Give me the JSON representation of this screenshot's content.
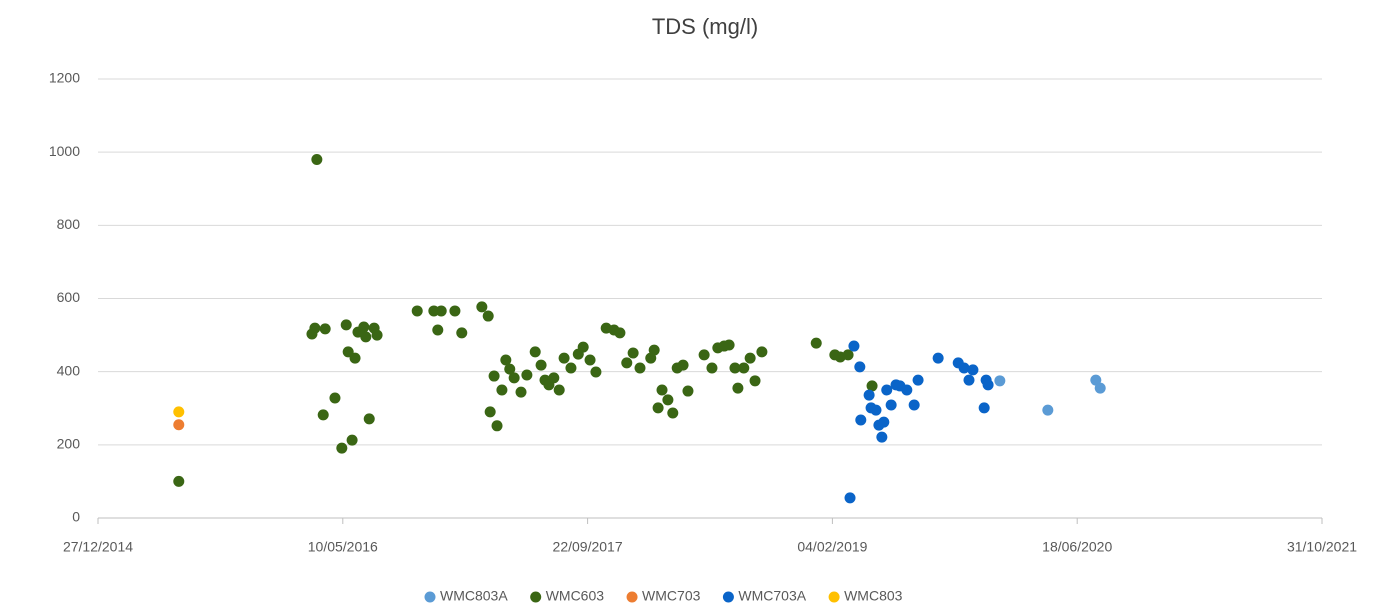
{
  "chart_data": {
    "type": "scatter",
    "title": "TDS (mg/l)",
    "xlim": [
      42000,
      44500
    ],
    "xticks": [
      {
        "value": 42000,
        "label": "27/12/2014"
      },
      {
        "value": 42500,
        "label": "10/05/2016"
      },
      {
        "value": 43000,
        "label": "22/09/2017"
      },
      {
        "value": 43500,
        "label": "04/02/2019"
      },
      {
        "value": 44000,
        "label": "18/06/2020"
      },
      {
        "value": 44500,
        "label": "31/10/2021"
      }
    ],
    "ylim": [
      0,
      1200
    ],
    "yticks": [
      0,
      200,
      400,
      600,
      800,
      1000,
      1200
    ],
    "grid": true,
    "legend": "bottom",
    "series": [
      {
        "name": "WMC803A",
        "color": "#5b9bd5",
        "x": [
          43842,
          43940,
          44038,
          44047
        ],
        "values": [
          375,
          295,
          377,
          355
        ]
      },
      {
        "name": "WMC603",
        "color": "#3a6614",
        "x": [
          42165,
          42447,
          42437,
          42443,
          42464,
          42460,
          42484,
          42507,
          42511,
          42525,
          42498,
          42519,
          42531,
          42543,
          42547,
          42564,
          42570,
          42554,
          42652,
          42686,
          42701,
          42694,
          42729,
          42743,
          42784,
          42797,
          42801,
          42815,
          42809,
          42825,
          42833,
          42841,
          42850,
          42864,
          42876,
          42893,
          42905,
          42913,
          42921,
          42931,
          42942,
          42952,
          42966,
          42981,
          42991,
          43005,
          43017,
          43038,
          43054,
          43066,
          43080,
          43093,
          43107,
          43129,
          43136,
          43144,
          43152,
          43164,
          43174,
          43183,
          43195,
          43205,
          43238,
          43254,
          43266,
          43279,
          43289,
          43301,
          43307,
          43319,
          43332,
          43342,
          43356,
          43467,
          43505,
          43516,
          43532,
          43581
        ],
        "values": [
          100,
          980,
          503,
          519,
          517,
          282,
          328,
          528,
          454,
          437,
          191,
          213,
          508,
          522,
          495,
          519,
          500,
          271,
          566,
          566,
          566,
          514,
          566,
          506,
          577,
          552,
          290,
          252,
          388,
          350,
          432,
          407,
          383,
          344,
          391,
          454,
          418,
          377,
          364,
          383,
          350,
          437,
          410,
          448,
          467,
          432,
          399,
          519,
          514,
          506,
          424,
          451,
          410,
          437,
          459,
          301,
          350,
          323,
          287,
          410,
          418,
          347,
          446,
          410,
          465,
          470,
          473,
          410,
          355,
          410,
          437,
          375,
          454,
          478,
          446,
          440,
          446,
          361
        ]
      },
      {
        "name": "WMC703",
        "color": "#ed7d31",
        "x": [
          42165
        ],
        "values": [
          255
        ]
      },
      {
        "name": "WMC703A",
        "color": "#0a64c8",
        "x": [
          43536,
          43544,
          43556,
          43558,
          43575,
          43579,
          43589,
          43595,
          43601,
          43605,
          43611,
          43620,
          43630,
          43638,
          43652,
          43667,
          43675,
          43716,
          43757,
          43769,
          43779,
          43787,
          43810,
          43814,
          43818
        ],
        "values": [
          55,
          470,
          413,
          268,
          336,
          301,
          295,
          254,
          221,
          262,
          350,
          309,
          364,
          361,
          350,
          309,
          377,
          437,
          424,
          410,
          377,
          405,
          301,
          377,
          364
        ]
      },
      {
        "name": "WMC803",
        "color": "#ffc000",
        "x": [
          42165
        ],
        "values": [
          290
        ]
      }
    ]
  }
}
